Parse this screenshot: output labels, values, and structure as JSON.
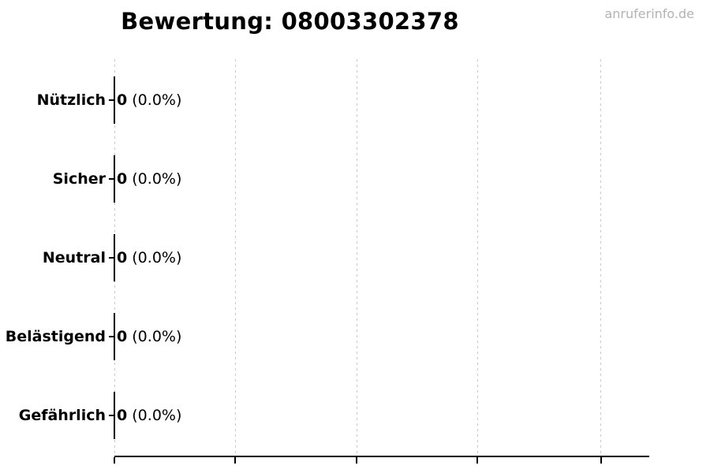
{
  "title": "Bewertung: 08003302378",
  "watermark": "anruferinfo.de",
  "colors": {
    "text": "#000000",
    "gridline": "#c9c9c9",
    "axis": "#000000",
    "watermark": "#b3b3b3",
    "background": "#ffffff"
  },
  "chart_data": {
    "type": "bar",
    "orientation": "horizontal",
    "title": "Bewertung: 08003302378",
    "categories": [
      "Nützlich",
      "Sicher",
      "Neutral",
      "Belästigend",
      "Gefährlich"
    ],
    "values": [
      0,
      0,
      0,
      0,
      0
    ],
    "percent_labels": [
      "(0.0%)",
      "(0.0%)",
      "(0.0%)",
      "(0.0%)",
      "(0.0%)"
    ],
    "value_label_format": "count (percent)",
    "xlabel": "",
    "ylabel": "",
    "xlim": [
      0,
      4.4
    ],
    "x_gridlines": 5,
    "grid": "vertical-dashed",
    "legend": "none",
    "x_tick_labels_visible": false
  }
}
